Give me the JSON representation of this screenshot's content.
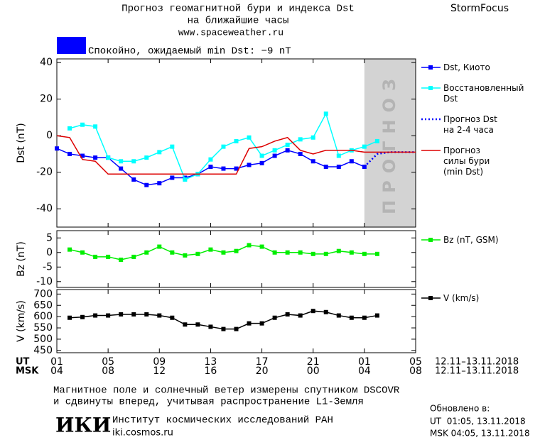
{
  "header": {
    "title_lines": [
      "Прогноз геомагнитной бури и индекса Dst",
      "на ближайшие часы"
    ],
    "url": "www.spaceweather.ru",
    "brand": "StormFocus",
    "status": "Спокойно, ожидаемый min Dst: −9 nT",
    "status_color": "#0000ff"
  },
  "chart_data": [
    {
      "type": "line",
      "y_label": "Dst (nT)",
      "xlim": [
        0,
        28
      ],
      "ylim": [
        -50,
        42
      ],
      "yticks": [
        -40,
        -20,
        0,
        20,
        40
      ],
      "xticks": [
        0,
        4,
        8,
        12,
        16,
        20,
        24,
        28
      ],
      "forecast_region": {
        "x": [
          24,
          28
        ],
        "label": "ПРОГНОЗ",
        "color": "#d3d3d3"
      },
      "series": [
        {
          "name": "Dst, Киото",
          "color": "#0000ff",
          "marker": "square",
          "x": [
            0,
            1,
            2,
            3,
            4,
            5,
            6,
            7,
            8,
            9,
            10,
            11,
            12,
            13,
            14,
            15,
            16,
            17,
            18,
            19,
            20,
            21,
            22,
            23,
            24
          ],
          "values": [
            -7,
            -10,
            -11,
            -12,
            -12,
            -18,
            -24,
            -27,
            -26,
            -23,
            -23,
            -21,
            -17,
            -18,
            -18,
            -16,
            -15,
            -11,
            -8,
            -10,
            -14,
            -17,
            -17,
            -14,
            -17
          ]
        },
        {
          "name": "Восстановленный\nDst",
          "color": "#00ffff",
          "marker": "square",
          "x": [
            1,
            2,
            3,
            4,
            5,
            6,
            7,
            8,
            9,
            10,
            11,
            12,
            13,
            14,
            15,
            16,
            17,
            18,
            19,
            20,
            21,
            22,
            23,
            24,
            25
          ],
          "values": [
            4,
            6,
            5,
            -12,
            -14,
            -14,
            -12,
            -9,
            -6,
            -24,
            -21,
            -13,
            -6,
            -3,
            -1,
            -11,
            -8,
            -5,
            -2,
            -1,
            12,
            -11,
            -8,
            -6,
            -3
          ]
        },
        {
          "name": "Прогноз Dst\nна 2-4 часа",
          "color": "#0000ff",
          "dashed": true,
          "x": [
            24,
            25,
            26,
            27,
            28
          ],
          "values": [
            -17,
            -10,
            -9,
            -9,
            -9
          ]
        },
        {
          "name": "Прогноз\nсилы бури\n(min Dst)",
          "color": "#dd0000",
          "x": [
            0,
            1,
            2,
            3,
            4,
            5,
            6,
            7,
            8,
            9,
            10,
            11,
            12,
            13,
            14,
            15,
            16,
            17,
            18,
            19,
            20,
            21,
            22,
            23,
            24,
            25,
            26,
            27,
            28
          ],
          "values": [
            0,
            -1,
            -13,
            -14,
            -21,
            -21,
            -21,
            -21,
            -21,
            -21,
            -21,
            -21,
            -21,
            -21,
            -21,
            -7,
            -6,
            -3,
            -1,
            -8,
            -10,
            -8,
            -8,
            -8,
            -9,
            -9,
            -9,
            -9,
            -9
          ]
        }
      ]
    },
    {
      "type": "line",
      "y_label": "Bz (nT)",
      "xlim": [
        0,
        28
      ],
      "ylim": [
        -12,
        7.5
      ],
      "yticks": [
        -10,
        -5,
        0,
        5
      ],
      "xticks": [
        0,
        4,
        8,
        12,
        16,
        20,
        24,
        28
      ],
      "series": [
        {
          "name": "Bz (nT, GSM)",
          "color": "#00ee00",
          "marker": "square",
          "x": [
            1,
            2,
            3,
            4,
            5,
            6,
            7,
            8,
            9,
            10,
            11,
            12,
            13,
            14,
            15,
            16,
            17,
            18,
            19,
            20,
            21,
            22,
            23,
            24,
            25
          ],
          "values": [
            1,
            0,
            -1.5,
            -1.5,
            -2.5,
            -1.5,
            0,
            2,
            0,
            -1,
            -0.5,
            1,
            0,
            0.5,
            2.5,
            2,
            0,
            0,
            0,
            -0.5,
            -0.5,
            0.5,
            0,
            -0.5,
            -0.5
          ]
        }
      ]
    },
    {
      "type": "line",
      "y_label": "V (km/s)",
      "xlim": [
        0,
        28
      ],
      "ylim": [
        440,
        720
      ],
      "yticks": [
        450,
        500,
        550,
        600,
        650,
        700
      ],
      "xticks": [
        0,
        4,
        8,
        12,
        16,
        20,
        24,
        28
      ],
      "series": [
        {
          "name": "V (km/s)",
          "color": "#000000",
          "marker": "square",
          "x": [
            1,
            2,
            3,
            4,
            5,
            6,
            7,
            8,
            9,
            10,
            11,
            12,
            13,
            14,
            15,
            16,
            17,
            18,
            19,
            20,
            21,
            22,
            23,
            24,
            25
          ],
          "values": [
            595,
            598,
            605,
            605,
            610,
            610,
            610,
            605,
            595,
            565,
            565,
            555,
            545,
            545,
            570,
            570,
            595,
            610,
            605,
            625,
            620,
            605,
            595,
            595,
            605
          ]
        }
      ]
    }
  ],
  "time_axis": {
    "ut_label": "UT",
    "msk_label": "MSK",
    "ut_range": "12.11–13.11.2018",
    "msk_range": "12.11–13.11.2018",
    "ut_ticks": [
      {
        "value": 0,
        "label": "01"
      },
      {
        "value": 4,
        "label": "05"
      },
      {
        "value": 8,
        "label": "09"
      },
      {
        "value": 12,
        "label": "13"
      },
      {
        "value": 16,
        "label": "17"
      },
      {
        "value": 20,
        "label": "21"
      },
      {
        "value": 24,
        "label": "01"
      },
      {
        "value": 28,
        "label": "05"
      }
    ],
    "msk_ticks": [
      {
        "value": 0,
        "label": "04"
      },
      {
        "value": 4,
        "label": "08"
      },
      {
        "value": 8,
        "label": "12"
      },
      {
        "value": 12,
        "label": "16"
      },
      {
        "value": 16,
        "label": "20"
      },
      {
        "value": 20,
        "label": "00"
      },
      {
        "value": 24,
        "label": "04"
      },
      {
        "value": 28,
        "label": "08"
      }
    ]
  },
  "footer": {
    "note_lines": [
      "Магнитное поле и солнечный ветер измерены спутником DSCOVR",
      "и сдвинуты вперед, учитывая распространение L1-Земля"
    ],
    "logo": "ИКИ",
    "institute": "Институт космических исследований РАН",
    "site": "iki.cosmos.ru",
    "updated_label": "Обновлено в:",
    "updated_ut": "UT  01:05, 13.11.2018",
    "updated_msk": "MSK 04:05, 13.11.2018"
  }
}
